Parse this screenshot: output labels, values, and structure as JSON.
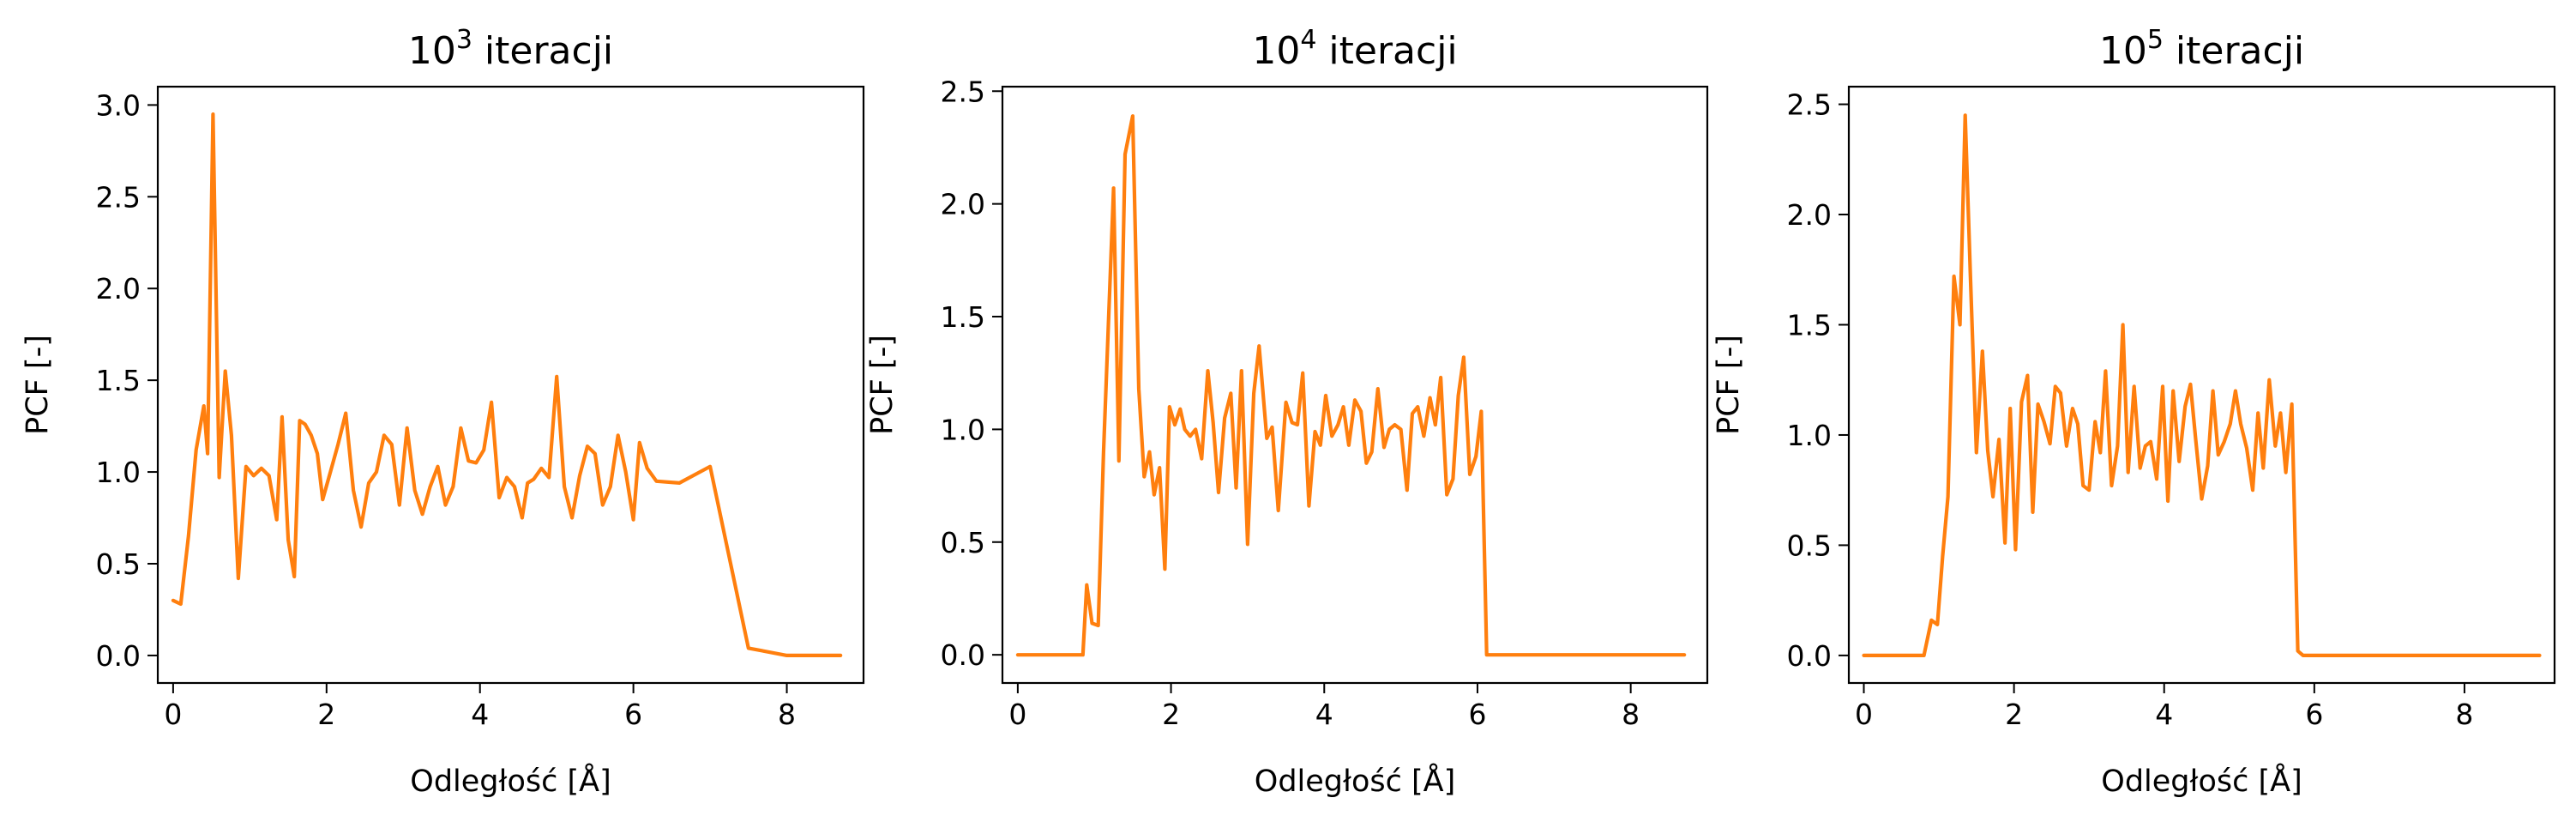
{
  "figure": {
    "panels": [
      {
        "title_base": "10",
        "title_exp": "3",
        "title_rest": " iteracji"
      },
      {
        "title_base": "10",
        "title_exp": "4",
        "title_rest": " iteracji"
      },
      {
        "title_base": "10",
        "title_exp": "5",
        "title_rest": " iteracji"
      }
    ]
  },
  "colors": {
    "series": "#ff7f0e"
  },
  "chart_data": [
    {
      "type": "line",
      "title": "10^3 iteracji",
      "xlabel": "Odległość [Å]",
      "ylabel": "PCF [-]",
      "xlim": [
        -0.2,
        9.0
      ],
      "ylim": [
        -0.15,
        3.1
      ],
      "xticks": [
        0,
        2,
        4,
        6,
        8
      ],
      "xtick_labels": [
        "0",
        "2",
        "4",
        "6",
        "8"
      ],
      "yticks": [
        0.0,
        0.5,
        1.0,
        1.5,
        2.0,
        2.5,
        3.0
      ],
      "ytick_labels": [
        "0.0",
        "0.5",
        "1.0",
        "1.5",
        "2.0",
        "2.5",
        "3.0"
      ],
      "grid": false,
      "series": [
        {
          "x": [
            0,
            0.1,
            0.2,
            0.3,
            0.4,
            0.45,
            0.52,
            0.6,
            0.68,
            0.76,
            0.85,
            0.95,
            1.05,
            1.15,
            1.25,
            1.35,
            1.42,
            1.5,
            1.58,
            1.65,
            1.72,
            1.8,
            1.88,
            1.95,
            2.05,
            2.15,
            2.25,
            2.35,
            2.45,
            2.55,
            2.65,
            2.75,
            2.85,
            2.95,
            3.05,
            3.15,
            3.25,
            3.35,
            3.45,
            3.55,
            3.65,
            3.75,
            3.85,
            3.95,
            4.05,
            4.15,
            4.25,
            4.35,
            4.45,
            4.55,
            4.62,
            4.7,
            4.8,
            4.9,
            5.0,
            5.1,
            5.2,
            5.3,
            5.4,
            5.5,
            5.6,
            5.7,
            5.8,
            5.9,
            6.0,
            6.08,
            6.18,
            6.3,
            6.6,
            7.0,
            7.5,
            8.0,
            8.5,
            8.7
          ],
          "y": [
            0.3,
            0.28,
            0.65,
            1.12,
            1.36,
            1.1,
            2.95,
            0.97,
            1.55,
            1.2,
            0.42,
            1.03,
            0.98,
            1.02,
            0.98,
            0.74,
            1.3,
            0.63,
            0.43,
            1.28,
            1.26,
            1.2,
            1.1,
            0.85,
            1.0,
            1.15,
            1.32,
            0.9,
            0.7,
            0.94,
            1.0,
            1.2,
            1.15,
            0.82,
            1.24,
            0.9,
            0.77,
            0.92,
            1.03,
            0.82,
            0.92,
            1.24,
            1.06,
            1.05,
            1.12,
            1.38,
            0.86,
            0.97,
            0.92,
            0.75,
            0.94,
            0.96,
            1.02,
            0.97,
            1.52,
            0.92,
            0.75,
            0.98,
            1.14,
            1.1,
            0.82,
            0.92,
            1.2,
            1.0,
            0.74,
            1.16,
            1.02,
            0.95,
            0.94,
            1.03,
            0.04,
            0.0,
            0.0,
            0.0
          ]
        }
      ]
    },
    {
      "type": "line",
      "title": "10^4 iteracji",
      "xlabel": "Odległość [Å]",
      "ylabel": "PCF [-]",
      "xlim": [
        -0.2,
        9.0
      ],
      "ylim": [
        -0.125,
        2.52
      ],
      "xticks": [
        0,
        2,
        4,
        6,
        8
      ],
      "xtick_labels": [
        "0",
        "2",
        "4",
        "6",
        "8"
      ],
      "yticks": [
        0.0,
        0.5,
        1.0,
        1.5,
        2.0,
        2.5
      ],
      "ytick_labels": [
        "0.0",
        "0.5",
        "1.0",
        "1.5",
        "2.0",
        "2.5"
      ],
      "grid": false,
      "series": [
        {
          "x": [
            0,
            0.3,
            0.6,
            0.85,
            0.9,
            0.97,
            1.05,
            1.12,
            1.25,
            1.32,
            1.4,
            1.5,
            1.58,
            1.65,
            1.72,
            1.78,
            1.85,
            1.92,
            1.98,
            2.05,
            2.12,
            2.18,
            2.25,
            2.32,
            2.4,
            2.48,
            2.55,
            2.62,
            2.7,
            2.78,
            2.85,
            2.92,
            3.0,
            3.08,
            3.15,
            3.25,
            3.32,
            3.4,
            3.5,
            3.58,
            3.65,
            3.72,
            3.8,
            3.88,
            3.95,
            4.02,
            4.1,
            4.18,
            4.25,
            4.32,
            4.4,
            4.48,
            4.55,
            4.62,
            4.7,
            4.78,
            4.85,
            4.92,
            5.0,
            5.08,
            5.15,
            5.22,
            5.3,
            5.38,
            5.45,
            5.52,
            5.6,
            5.68,
            5.75,
            5.82,
            5.9,
            5.98,
            6.05,
            6.12,
            6.2,
            6.28,
            6.35,
            6.42,
            6.5,
            6.58,
            6.65,
            6.72,
            6.8,
            6.88,
            6.95,
            7.2,
            7.6,
            8.0,
            8.4,
            8.7
          ],
          "y": [
            0.0,
            0.0,
            0.0,
            0.0,
            0.31,
            0.14,
            0.13,
            0.9,
            2.07,
            0.86,
            2.22,
            2.39,
            1.18,
            0.79,
            0.9,
            0.71,
            0.83,
            0.38,
            1.1,
            1.02,
            1.09,
            1.0,
            0.97,
            1.0,
            0.87,
            1.26,
            1.03,
            0.72,
            1.05,
            1.16,
            0.74,
            1.26,
            0.49,
            1.16,
            1.37,
            0.96,
            1.01,
            0.64,
            1.12,
            1.03,
            1.02,
            1.25,
            0.66,
            0.99,
            0.93,
            1.15,
            0.97,
            1.02,
            1.1,
            0.93,
            1.13,
            1.08,
            0.85,
            0.9,
            1.18,
            0.92,
            1.0,
            1.02,
            1.0,
            0.73,
            1.07,
            1.1,
            0.97,
            1.14,
            1.02,
            1.23,
            0.71,
            0.78,
            1.15,
            1.32,
            0.8,
            0.88,
            1.08,
            0.0,
            0.0,
            0.0,
            0.0,
            0.0,
            0.0,
            0.0,
            0.0,
            0.0,
            0.0,
            0.0,
            0.0,
            0.0,
            0.0,
            0.0,
            0.0,
            0.0
          ]
        }
      ]
    },
    {
      "type": "line",
      "title": "10^5 iteracji",
      "xlabel": "Odległość [Å]",
      "ylabel": "PCF [-]",
      "xlim": [
        -0.2,
        9.2
      ],
      "ylim": [
        -0.125,
        2.58
      ],
      "xticks": [
        0,
        2,
        4,
        6,
        8
      ],
      "xtick_labels": [
        "0",
        "2",
        "4",
        "6",
        "8"
      ],
      "yticks": [
        0.0,
        0.5,
        1.0,
        1.5,
        2.0,
        2.5
      ],
      "ytick_labels": [
        "0.0",
        "0.5",
        "1.0",
        "1.5",
        "2.0",
        "2.5"
      ],
      "grid": false,
      "series": [
        {
          "x": [
            0,
            0.4,
            0.8,
            0.9,
            0.98,
            1.05,
            1.12,
            1.2,
            1.28,
            1.35,
            1.42,
            1.5,
            1.58,
            1.65,
            1.72,
            1.8,
            1.88,
            1.95,
            2.02,
            2.1,
            2.18,
            2.25,
            2.32,
            2.4,
            2.48,
            2.55,
            2.62,
            2.7,
            2.78,
            2.85,
            2.92,
            3.0,
            3.08,
            3.15,
            3.22,
            3.3,
            3.38,
            3.45,
            3.52,
            3.6,
            3.68,
            3.75,
            3.82,
            3.9,
            3.98,
            4.05,
            4.12,
            4.2,
            4.28,
            4.35,
            4.42,
            4.5,
            4.58,
            4.65,
            4.72,
            4.8,
            4.88,
            4.95,
            5.02,
            5.1,
            5.18,
            5.25,
            5.32,
            5.4,
            5.48,
            5.55,
            5.62,
            5.7,
            5.78,
            5.85,
            5.92,
            6.0,
            6.08,
            6.15,
            6.22,
            6.3,
            6.38,
            6.45,
            6.52,
            6.6,
            6.68,
            6.75,
            6.82,
            6.9,
            6.98,
            7.05,
            7.12,
            7.2,
            7.28,
            7.4,
            7.8,
            8.2,
            8.6,
            9.0
          ],
          "y": [
            0.0,
            0.0,
            0.0,
            0.16,
            0.14,
            0.45,
            0.72,
            1.72,
            1.5,
            2.45,
            1.72,
            0.92,
            1.38,
            0.93,
            0.72,
            0.98,
            0.51,
            1.12,
            0.48,
            1.15,
            1.27,
            0.65,
            1.14,
            1.06,
            0.96,
            1.22,
            1.19,
            0.95,
            1.12,
            1.05,
            0.77,
            0.75,
            1.06,
            0.92,
            1.29,
            0.77,
            0.95,
            1.5,
            0.83,
            1.22,
            0.85,
            0.95,
            0.97,
            0.8,
            1.22,
            0.7,
            1.2,
            0.88,
            1.13,
            1.23,
            0.98,
            0.71,
            0.86,
            1.2,
            0.91,
            0.97,
            1.05,
            1.2,
            1.05,
            0.94,
            0.75,
            1.1,
            0.85,
            1.25,
            0.95,
            1.1,
            0.83,
            1.14,
            0.02,
            0.0,
            0.0,
            0.0,
            0.0,
            0.0,
            0.0,
            0.0,
            0.0,
            0.0,
            0.0,
            0.0,
            0.0,
            0.0,
            0.0,
            0.0,
            0.0,
            0.0,
            0.0,
            0.0,
            0.0,
            0.0,
            0.0,
            0.0,
            0.0,
            0.0
          ]
        }
      ]
    }
  ]
}
